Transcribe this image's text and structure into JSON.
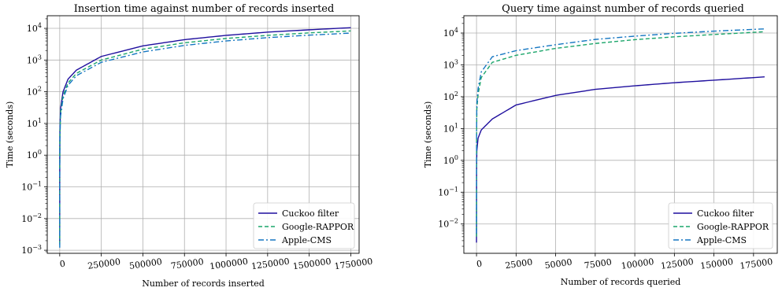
{
  "chart_data": [
    {
      "type": "line",
      "title": "Insertion time against number of records inserted",
      "xlabel": "Number of records inserted",
      "ylabel": "Time (seconds)",
      "x_scale": "linear",
      "y_scale": "log",
      "xlim": [
        -75000,
        1800000
      ],
      "ylim": [
        0.0008,
        25000
      ],
      "grid": true,
      "legend_position": "lower-right",
      "x_ticks": [
        {
          "value": 0,
          "label": "0"
        },
        {
          "value": 250000,
          "label": "250000"
        },
        {
          "value": 500000,
          "label": "500000"
        },
        {
          "value": 750000,
          "label": "750000"
        },
        {
          "value": 1000000,
          "label": "1000000"
        },
        {
          "value": 1250000,
          "label": "1250000"
        },
        {
          "value": 1500000,
          "label": "1500000"
        },
        {
          "value": 1750000,
          "label": "1750000"
        }
      ],
      "y_ticks": [
        {
          "value": 0.001,
          "base": "10",
          "exp": "−3"
        },
        {
          "value": 0.01,
          "base": "10",
          "exp": "−2"
        },
        {
          "value": 0.1,
          "base": "10",
          "exp": "−1"
        },
        {
          "value": 1,
          "base": "10",
          "exp": "0"
        },
        {
          "value": 10,
          "base": "10",
          "exp": "1"
        },
        {
          "value": 100,
          "base": "10",
          "exp": "2"
        },
        {
          "value": 1000,
          "base": "10",
          "exp": "3"
        },
        {
          "value": 10000,
          "base": "10",
          "exp": "4"
        }
      ],
      "series": [
        {
          "name": "Cuckoo filter",
          "color": "#1f0f9e",
          "dash": "solid",
          "x": [
            0,
            100,
            1000,
            5000,
            20000,
            50000,
            100000,
            250000,
            500000,
            750000,
            1000000,
            1250000,
            1500000,
            1750000
          ],
          "y": [
            0.0018,
            0.5,
            6,
            30,
            100,
            250,
            480,
            1300,
            2800,
            4400,
            6000,
            7600,
            9000,
            10500
          ]
        },
        {
          "name": "Google-RAPPOR",
          "color": "#1aa56a",
          "dash": "dashed",
          "x": [
            0,
            100,
            1000,
            5000,
            20000,
            50000,
            100000,
            250000,
            500000,
            750000,
            1000000,
            1250000,
            1500000,
            1750000
          ],
          "y": [
            0.0015,
            0.3,
            4,
            22,
            75,
            190,
            380,
            1000,
            2200,
            3500,
            4800,
            6000,
            7200,
            8300
          ]
        },
        {
          "name": "Apple-CMS",
          "color": "#1577c2",
          "dash": "dashdot",
          "x": [
            0,
            100,
            1000,
            5000,
            20000,
            50000,
            100000,
            250000,
            500000,
            750000,
            1000000,
            1250000,
            1500000,
            1750000
          ],
          "y": [
            0.0012,
            0.2,
            3,
            17,
            60,
            160,
            320,
            850,
            1800,
            2900,
            4000,
            5100,
            6100,
            7100
          ]
        }
      ]
    },
    {
      "type": "line",
      "title": "Query time against number of records queried",
      "xlabel": "Number of records queried",
      "ylabel": "Time (seconds)",
      "x_scale": "linear",
      "y_scale": "log",
      "xlim": [
        -8000,
        190000
      ],
      "ylim": [
        0.0012,
        35000
      ],
      "grid": true,
      "legend_position": "lower-right",
      "x_ticks": [
        {
          "value": 0,
          "label": "0"
        },
        {
          "value": 25000,
          "label": "25000"
        },
        {
          "value": 50000,
          "label": "50000"
        },
        {
          "value": 75000,
          "label": "75000"
        },
        {
          "value": 100000,
          "label": "100000"
        },
        {
          "value": 125000,
          "label": "125000"
        },
        {
          "value": 150000,
          "label": "150000"
        },
        {
          "value": 175000,
          "label": "175000"
        }
      ],
      "y_ticks": [
        {
          "value": 0.01,
          "base": "10",
          "exp": "−2"
        },
        {
          "value": 0.1,
          "base": "10",
          "exp": "−1"
        },
        {
          "value": 1,
          "base": "10",
          "exp": "0"
        },
        {
          "value": 10,
          "base": "10",
          "exp": "1"
        },
        {
          "value": 100,
          "base": "10",
          "exp": "2"
        },
        {
          "value": 1000,
          "base": "10",
          "exp": "3"
        },
        {
          "value": 10000,
          "base": "10",
          "exp": "4"
        }
      ],
      "series": [
        {
          "name": "Cuckoo filter",
          "color": "#1f0f9e",
          "dash": "solid",
          "x": [
            0,
            50,
            200,
            1000,
            3000,
            10000,
            25000,
            50000,
            75000,
            100000,
            125000,
            150000,
            182000
          ],
          "y": [
            0.0026,
            0.5,
            2,
            5,
            9,
            20,
            55,
            110,
            170,
            220,
            275,
            330,
            420
          ]
        },
        {
          "name": "Google-RAPPOR",
          "color": "#1aa56a",
          "dash": "dashed",
          "x": [
            0,
            50,
            200,
            1000,
            3000,
            10000,
            25000,
            50000,
            75000,
            100000,
            125000,
            150000,
            182000
          ],
          "y": [
            0.004,
            5,
            40,
            120,
            400,
            1200,
            2000,
            3300,
            4700,
            6200,
            7600,
            9000,
            11000
          ]
        },
        {
          "name": "Apple-CMS",
          "color": "#1577c2",
          "dash": "dashdot",
          "x": [
            0,
            50,
            200,
            1000,
            3000,
            10000,
            25000,
            50000,
            75000,
            100000,
            125000,
            150000,
            182000
          ],
          "y": [
            0.005,
            8,
            60,
            180,
            600,
            1800,
            2800,
            4300,
            6300,
            8000,
            9800,
            11500,
            13500
          ]
        }
      ]
    }
  ]
}
